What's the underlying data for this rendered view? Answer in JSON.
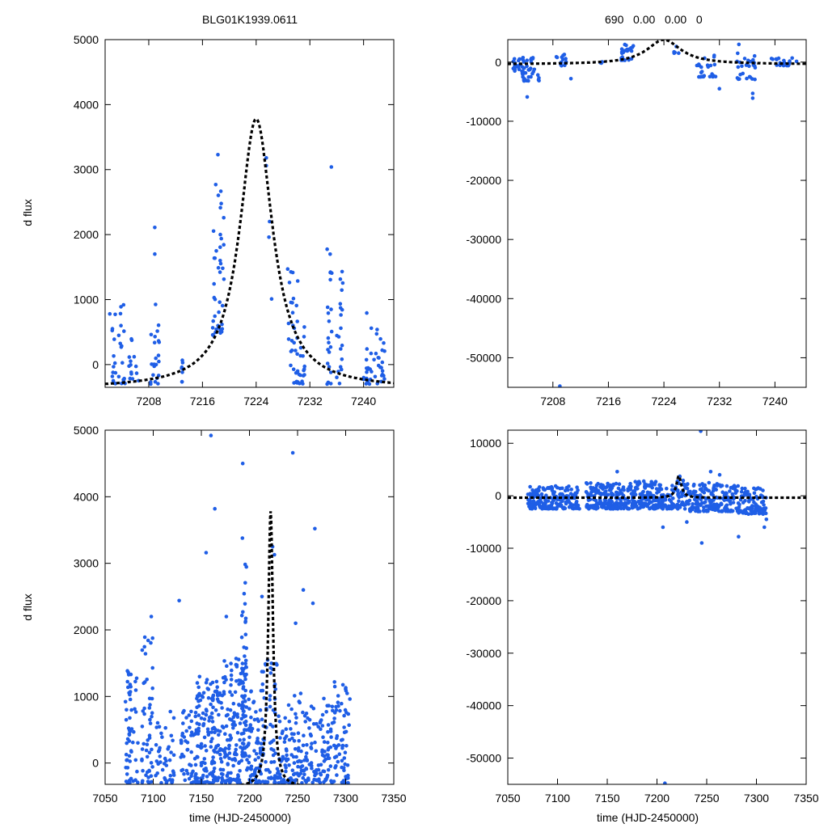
{
  "figure": {
    "title_left": "BLG01K1939.0611",
    "title_right": "690   0.00   0.00   0",
    "ylabel": "d flux",
    "xlabel": "time (HJD-2450000)",
    "colors": {
      "points": "#1f5ee6",
      "model": "#000000",
      "axes": "#000000"
    }
  },
  "chart_data": [
    {
      "type": "scatter",
      "panel": "top-left",
      "xlim": [
        7201.5,
        7244.5
      ],
      "ylim": [
        -350,
        5000
      ],
      "xticks": [
        7208,
        7216,
        7224,
        7232,
        7240
      ],
      "yticks": [
        0,
        1000,
        2000,
        3000,
        4000,
        5000
      ],
      "seed": 11,
      "clusters": [
        {
          "x": [
            7202.5,
            7203.2
          ],
          "y": [
            -300,
            1100
          ],
          "n": 14
        },
        {
          "x": [
            7203.5,
            7204.5
          ],
          "y": [
            -300,
            1050
          ],
          "n": 16
        },
        {
          "x": [
            7205.0,
            7206.5
          ],
          "y": [
            -250,
            400
          ],
          "n": 14
        },
        {
          "x": [
            7208.2,
            7209.6
          ],
          "y": [
            -300,
            1100
          ],
          "n": 22
        },
        {
          "x": [
            7212.8,
            7213.2
          ],
          "y": [
            -300,
            450
          ],
          "n": 8
        },
        {
          "x": [
            7217.5,
            7219.2
          ],
          "y": [
            450,
            2800
          ],
          "n": 40
        },
        {
          "x": [
            7228.8,
            7230.2
          ],
          "y": [
            -300,
            1450
          ],
          "n": 30
        },
        {
          "x": [
            7230.2,
            7231.3
          ],
          "y": [
            -300,
            600
          ],
          "n": 16
        },
        {
          "x": [
            7234.5,
            7235.3
          ],
          "y": [
            -300,
            1800
          ],
          "n": 22
        },
        {
          "x": [
            7236.0,
            7237.0
          ],
          "y": [
            -300,
            1400
          ],
          "n": 18
        },
        {
          "x": [
            7240.0,
            7241.2
          ],
          "y": [
            -300,
            800
          ],
          "n": 20
        },
        {
          "x": [
            7241.5,
            7243.2
          ],
          "y": [
            -300,
            600
          ],
          "n": 22
        }
      ],
      "points": [
        [
          7208.9,
          2110
        ],
        [
          7208.9,
          1700
        ],
        [
          7218.3,
          3230
        ],
        [
          7225.5,
          3180
        ],
        [
          7225.5,
          3060
        ],
        [
          7226.0,
          2200
        ],
        [
          7225.9,
          1960
        ],
        [
          7226.3,
          1010
        ],
        [
          7235.2,
          3040
        ],
        [
          7236.8,
          1430
        ],
        [
          7202.2,
          780
        ],
        [
          7228.7,
          1470
        ]
      ],
      "model": {
        "t0": 7224,
        "peak": 3780,
        "width": 3.0,
        "base": -370
      }
    },
    {
      "type": "scatter",
      "panel": "top-right",
      "xlim": [
        7201.5,
        7244.5
      ],
      "ylim": [
        -55000,
        3800
      ],
      "xticks": [
        7208,
        7216,
        7224,
        7232,
        7240
      ],
      "yticks": [
        -50000,
        -40000,
        -30000,
        -20000,
        -10000,
        0
      ],
      "seed": 23,
      "clusters": [
        {
          "x": [
            7202.2,
            7203.4
          ],
          "y": [
            -1500,
            900
          ],
          "n": 16
        },
        {
          "x": [
            7203.5,
            7206.0
          ],
          "y": [
            -3200,
            1000
          ],
          "n": 40
        },
        {
          "x": [
            7208.5,
            7210.0
          ],
          "y": [
            -1200,
            1500
          ],
          "n": 14
        },
        {
          "x": [
            7214.8,
            7215.2
          ],
          "y": [
            -300,
            600
          ],
          "n": 4
        },
        {
          "x": [
            7217.8,
            7219.6
          ],
          "y": [
            300,
            3000
          ],
          "n": 26
        },
        {
          "x": [
            7225.4,
            7226.4
          ],
          "y": [
            1500,
            3000
          ],
          "n": 6
        },
        {
          "x": [
            7228.5,
            7231.5
          ],
          "y": [
            -2500,
            1200
          ],
          "n": 26
        },
        {
          "x": [
            7234.5,
            7237.5
          ],
          "y": [
            -3000,
            1500
          ],
          "n": 26
        },
        {
          "x": [
            7239.5,
            7243.5
          ],
          "y": [
            -600,
            800
          ],
          "n": 22
        }
      ],
      "points": [
        [
          7209.0,
          -54800
        ],
        [
          7204.3,
          -5900
        ],
        [
          7232.0,
          -4500
        ],
        [
          7236.8,
          -5300
        ],
        [
          7236.8,
          -6100
        ],
        [
          7210.6,
          -2800
        ],
        [
          7234.8,
          3000
        ]
      ],
      "model": {
        "t0": 7224,
        "peak": 3780,
        "width": 3.0,
        "base": -370
      }
    },
    {
      "type": "scatter",
      "panel": "bottom-left",
      "xlim": [
        7050,
        7350
      ],
      "ylim": [
        -320,
        5000
      ],
      "xticks": [
        7050,
        7100,
        7150,
        7200,
        7250,
        7300,
        7350
      ],
      "yticks": [
        0,
        1000,
        2000,
        3000,
        4000,
        5000
      ],
      "seed": 37,
      "clusters": [
        {
          "x": [
            7071,
            7085
          ],
          "y": [
            -300,
            1400
          ],
          "n": 55
        },
        {
          "x": [
            7088,
            7100
          ],
          "y": [
            -300,
            1900
          ],
          "n": 50
        },
        {
          "x": [
            7102,
            7122
          ],
          "y": [
            -300,
            800
          ],
          "n": 45
        },
        {
          "x": [
            7128,
            7142
          ],
          "y": [
            -300,
            800
          ],
          "n": 40
        },
        {
          "x": [
            7143,
            7172
          ],
          "y": [
            -300,
            1300
          ],
          "n": 170
        },
        {
          "x": [
            7172,
            7192
          ],
          "y": [
            -300,
            1600
          ],
          "n": 110
        },
        {
          "x": [
            7192,
            7197
          ],
          "y": [
            100,
            3400
          ],
          "n": 70
        },
        {
          "x": [
            7197,
            7212
          ],
          "y": [
            -300,
            1100
          ],
          "n": 70
        },
        {
          "x": [
            7212,
            7232
          ],
          "y": [
            -300,
            1600
          ],
          "n": 80
        },
        {
          "x": [
            7232,
            7262
          ],
          "y": [
            -300,
            1100
          ],
          "n": 110
        },
        {
          "x": [
            7262,
            7282
          ],
          "y": [
            -300,
            1000
          ],
          "n": 70
        },
        {
          "x": [
            7282,
            7305
          ],
          "y": [
            -300,
            1300
          ],
          "n": 80
        }
      ],
      "points": [
        [
          7160,
          4920
        ],
        [
          7193,
          4500
        ],
        [
          7245,
          4660
        ],
        [
          7164,
          3820
        ],
        [
          7268,
          3520
        ],
        [
          7155,
          3160
        ],
        [
          7127,
          2440
        ],
        [
          7098,
          2200
        ],
        [
          7224,
          3250
        ],
        [
          7226,
          3130
        ],
        [
          7266,
          2400
        ],
        [
          7248,
          2100
        ],
        [
          7256,
          2600
        ],
        [
          7213,
          2500
        ],
        [
          7176,
          2200
        ]
      ],
      "model": {
        "t0": 7222,
        "peak": 3780,
        "width": 3.0,
        "base": -370
      }
    },
    {
      "type": "scatter",
      "panel": "bottom-right",
      "xlim": [
        7050,
        7350
      ],
      "ylim": [
        -55000,
        12500
      ],
      "xticks": [
        7050,
        7100,
        7150,
        7200,
        7250,
        7300,
        7350
      ],
      "yticks": [
        -50000,
        -40000,
        -30000,
        -20000,
        -10000,
        0,
        10000
      ],
      "seed": 53,
      "clusters": [
        {
          "x": [
            7070,
            7100
          ],
          "y": [
            -2500,
            2000
          ],
          "n": 130
        },
        {
          "x": [
            7102,
            7122
          ],
          "y": [
            -2500,
            1800
          ],
          "n": 70
        },
        {
          "x": [
            7128,
            7172
          ],
          "y": [
            -2500,
            2500
          ],
          "n": 200
        },
        {
          "x": [
            7172,
            7212
          ],
          "y": [
            -2500,
            2800
          ],
          "n": 170
        },
        {
          "x": [
            7212,
            7232
          ],
          "y": [
            -2500,
            3000
          ],
          "n": 70
        },
        {
          "x": [
            7232,
            7262
          ],
          "y": [
            -3000,
            2500
          ],
          "n": 110
        },
        {
          "x": [
            7262,
            7282
          ],
          "y": [
            -3000,
            2200
          ],
          "n": 70
        },
        {
          "x": [
            7282,
            7310
          ],
          "y": [
            -3500,
            1500
          ],
          "n": 100
        }
      ],
      "points": [
        [
          7244,
          12300
        ],
        [
          7208,
          -54800
        ],
        [
          7245,
          -9000
        ],
        [
          7282,
          -7800
        ],
        [
          7308,
          -6000
        ],
        [
          7206,
          -6000
        ],
        [
          7230,
          -5000
        ],
        [
          7160,
          4600
        ],
        [
          7254,
          4600
        ],
        [
          7310,
          -4500
        ],
        [
          7263,
          4000
        ],
        [
          7223,
          3700
        ]
      ],
      "model": {
        "t0": 7222,
        "peak": 3780,
        "width": 3.0,
        "base": -370
      }
    }
  ]
}
